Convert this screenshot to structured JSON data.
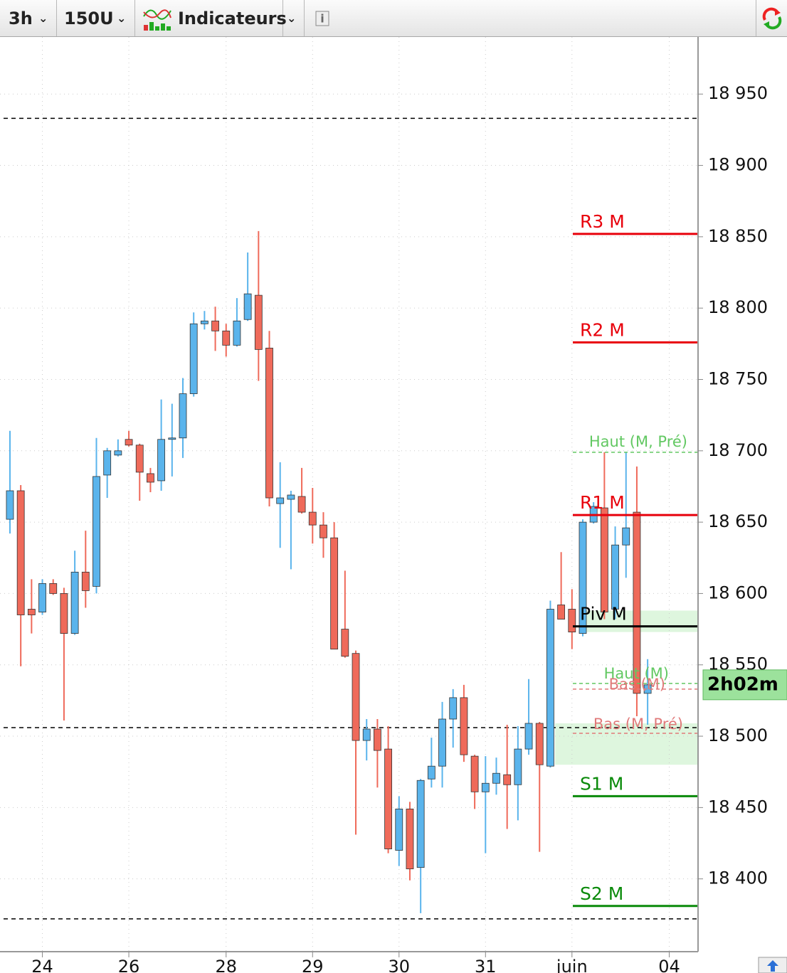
{
  "toolbar": {
    "timeframe": "3h",
    "units": "150U",
    "indicators": "Indicateurs"
  },
  "chart_data": {
    "type": "candlestick",
    "countdown": "2h02m",
    "up_color": "#5ab4ec",
    "down_color": "#ef6a5a",
    "grid": true,
    "open": [
      18652,
      18672,
      18589,
      18587,
      18607,
      18600,
      18572,
      18615,
      18605,
      18683,
      18697,
      18708,
      18704,
      18684,
      18679,
      18708,
      18709,
      18740,
      18789,
      18791,
      18784,
      18774,
      18792,
      18809,
      18772,
      18663,
      18666,
      18668,
      18657,
      18648,
      18639,
      18575,
      18558,
      18497,
      18505,
      18491,
      18420,
      18449,
      18408,
      18470,
      18479,
      18512,
      18527,
      18486,
      18461,
      18467,
      18473,
      18466,
      18491,
      18509,
      18479,
      18592,
      18589,
      18572,
      18650,
      18660,
      18589,
      18634,
      18657,
      18530
    ],
    "high": [
      18714,
      18676,
      18610,
      18610,
      18610,
      18604,
      18630,
      18644,
      18709,
      18702,
      18708,
      18714,
      18705,
      18688,
      18736,
      18733,
      18751,
      18797,
      18798,
      18801,
      18789,
      18807,
      18839,
      18854,
      18784,
      18692,
      18672,
      18688,
      18674,
      18657,
      18650,
      18616,
      18560,
      18512,
      18512,
      18507,
      18458,
      18454,
      18470,
      18499,
      18524,
      18533,
      18536,
      18487,
      18486,
      18485,
      18508,
      18507,
      18540,
      18510,
      18595,
      18629,
      18603,
      18652,
      18664,
      18699,
      18647,
      18699,
      18689,
      18554
    ],
    "low": [
      18642,
      18549,
      18572,
      18585,
      18599,
      18511,
      18571,
      18590,
      18600,
      18667,
      18696,
      18703,
      18665,
      18671,
      18672,
      18682,
      18695,
      18738,
      18785,
      18770,
      18766,
      18773,
      18791,
      18749,
      18661,
      18632,
      18617,
      18656,
      18635,
      18625,
      18561,
      18555,
      18431,
      18483,
      18464,
      18418,
      18409,
      18399,
      18376,
      18464,
      18464,
      18492,
      18482,
      18449,
      18418,
      18459,
      18435,
      18441,
      18487,
      18419,
      18478,
      18582,
      18561,
      18570,
      18649,
      18582,
      18582,
      18611,
      18514,
      18508
    ],
    "close": [
      18672,
      18585,
      18585,
      18607,
      18600,
      18572,
      18615,
      18602,
      18682,
      18700,
      18700,
      18704,
      18685,
      18678,
      18708,
      18709,
      18740,
      18789,
      18791,
      18784,
      18774,
      18791,
      18810,
      18771,
      18667,
      18667,
      18669,
      18657,
      18648,
      18639,
      18561,
      18556,
      18497,
      18505,
      18490,
      18421,
      18449,
      18407,
      18469,
      18479,
      18512,
      18527,
      18487,
      18461,
      18467,
      18474,
      18466,
      18491,
      18509,
      18480,
      18589,
      18582,
      18573,
      18650,
      18661,
      18587,
      18634,
      18646,
      18530,
      18536
    ],
    "xlim": [
      -0.92,
      63.6
    ],
    "xticks": [
      {
        "value": 3,
        "label": "24"
      },
      {
        "value": 11,
        "label": "26"
      },
      {
        "value": 20,
        "label": "28"
      },
      {
        "value": 28,
        "label": "29"
      },
      {
        "value": 36,
        "label": "30"
      },
      {
        "value": 44,
        "label": "31"
      },
      {
        "value": 52,
        "label": "juin"
      },
      {
        "value": 61,
        "label": "04"
      }
    ],
    "ylim": [
      18349,
      18990
    ],
    "yticks": [
      {
        "value": 18400,
        "label": "18 400"
      },
      {
        "value": 18450,
        "label": "18 450"
      },
      {
        "value": 18500,
        "label": "18 500"
      },
      {
        "value": 18550,
        "label": "18 550"
      },
      {
        "value": 18600,
        "label": "18 600"
      },
      {
        "value": 18650,
        "label": "18 650"
      },
      {
        "value": 18700,
        "label": "18 700"
      },
      {
        "value": 18750,
        "label": "18 750"
      },
      {
        "value": 18800,
        "label": "18 800"
      },
      {
        "value": 18850,
        "label": "18 850"
      },
      {
        "value": 18900,
        "label": "18 900"
      },
      {
        "value": 18950,
        "label": "18 950"
      }
    ],
    "levels": [
      {
        "label": "R3 M",
        "value": 18852,
        "color": "#e8000b",
        "dashed": false
      },
      {
        "label": "R2 M",
        "value": 18776,
        "color": "#e8000b",
        "dashed": false
      },
      {
        "label": "Haut (M, Pré)",
        "value": 18699,
        "color": "#62c862",
        "dashed": true
      },
      {
        "label": "R1 M",
        "value": 18655,
        "color": "#e8000b",
        "dashed": false
      },
      {
        "label": "Piv M",
        "value": 18577,
        "color": "#000000",
        "dashed": false
      },
      {
        "label": "Haut (M)",
        "value": 18537,
        "color": "#62c862",
        "dashed": true
      },
      {
        "label": "Bas (M)",
        "value": 18533,
        "color": "#e07a7a",
        "dashed": true
      },
      {
        "label": "Bas (M, Pré)",
        "value": 18502,
        "color": "#e07a7a",
        "dashed": true
      },
      {
        "label": "S1 M",
        "value": 18458,
        "color": "#0a8a0a",
        "dashed": false
      },
      {
        "label": "S2 M",
        "value": 18381,
        "color": "#0a8a0a",
        "dashed": false
      }
    ],
    "reference_lines": [
      18933,
      18506,
      18372
    ],
    "zones": [
      {
        "from": 18573,
        "to": 18588
      },
      {
        "from": 18480,
        "to": 18509
      }
    ]
  }
}
